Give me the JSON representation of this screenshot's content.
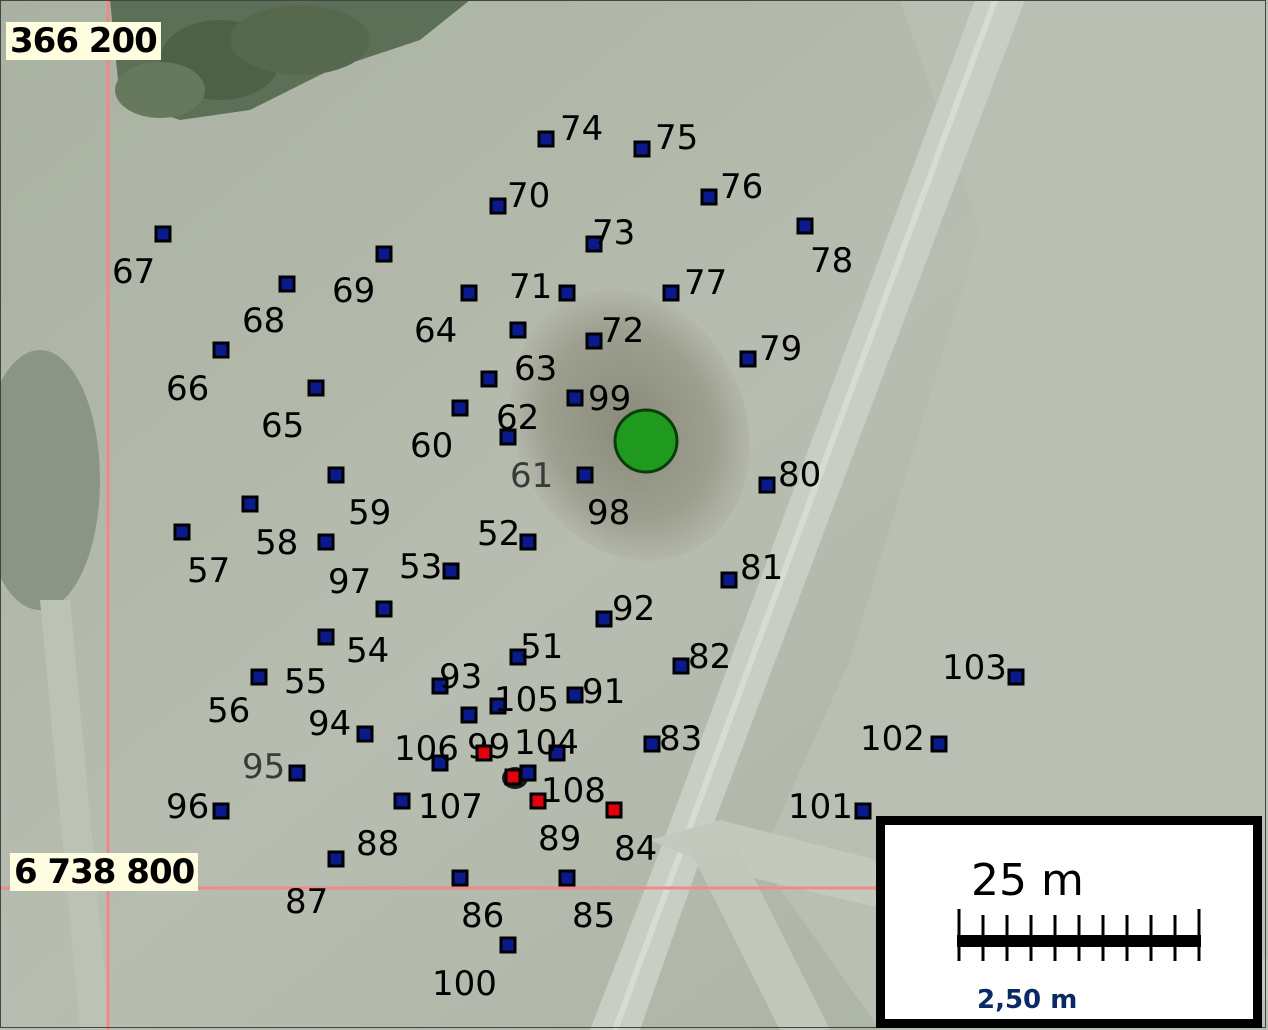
{
  "coordinates": {
    "top_left_label": "366 200",
    "grid_label": "6 738 800"
  },
  "scale": {
    "title": "25 m",
    "subtitle": "2,50 m"
  },
  "colors": {
    "field": "#b3bbac",
    "road": "#c6cbc1",
    "grid_line": "#f08a8a",
    "point_blue": "#0a1a8c",
    "point_red": "#e0000e",
    "center_marker": "#1f9a1f"
  },
  "center_marker": {
    "icon": "green-circle-marker"
  },
  "points": [
    {
      "label": "74",
      "color": "blue"
    },
    {
      "label": "75",
      "color": "blue"
    },
    {
      "label": "70",
      "color": "blue"
    },
    {
      "label": "76",
      "color": "blue"
    },
    {
      "label": "73",
      "color": "blue"
    },
    {
      "label": "78",
      "color": "blue"
    },
    {
      "label": "67",
      "color": "blue"
    },
    {
      "label": "69",
      "color": "blue"
    },
    {
      "label": "71",
      "color": "blue"
    },
    {
      "label": "77",
      "color": "blue"
    },
    {
      "label": "68",
      "color": "blue"
    },
    {
      "label": "64",
      "color": "blue"
    },
    {
      "label": "72",
      "color": "blue"
    },
    {
      "label": "63",
      "color": "blue"
    },
    {
      "label": "79",
      "color": "blue"
    },
    {
      "label": "66",
      "color": "blue"
    },
    {
      "label": "62",
      "color": "blue"
    },
    {
      "label": "99",
      "color": "blue"
    },
    {
      "label": "65",
      "color": "blue"
    },
    {
      "label": "60",
      "color": "blue"
    },
    {
      "label": "61",
      "color": "blue"
    },
    {
      "label": "80",
      "color": "blue"
    },
    {
      "label": "98",
      "color": "blue"
    },
    {
      "label": "59",
      "color": "blue"
    },
    {
      "label": "58",
      "color": "blue"
    },
    {
      "label": "52",
      "color": "blue"
    },
    {
      "label": "57",
      "color": "blue"
    },
    {
      "label": "97",
      "color": "blue"
    },
    {
      "label": "53",
      "color": "blue"
    },
    {
      "label": "81",
      "color": "blue"
    },
    {
      "label": "92",
      "color": "blue"
    },
    {
      "label": "54",
      "color": "blue"
    },
    {
      "label": "51",
      "color": "blue"
    },
    {
      "label": "55",
      "color": "blue"
    },
    {
      "label": "82",
      "color": "blue"
    },
    {
      "label": "103",
      "color": "blue"
    },
    {
      "label": "93",
      "color": "blue"
    },
    {
      "label": "56",
      "color": "blue"
    },
    {
      "label": "91",
      "color": "blue"
    },
    {
      "label": "105",
      "color": "blue"
    },
    {
      "label": "94",
      "color": "blue"
    },
    {
      "label": "102",
      "color": "blue"
    },
    {
      "label": "83",
      "color": "blue"
    },
    {
      "label": "106",
      "color": "blue"
    },
    {
      "label": "99",
      "color": "blue"
    },
    {
      "label": "104",
      "color": "blue"
    },
    {
      "label": "95",
      "color": "blue"
    },
    {
      "label": "108",
      "color": "blue"
    },
    {
      "label": "96",
      "color": "blue"
    },
    {
      "label": "107",
      "color": "blue"
    },
    {
      "label": "101",
      "color": "blue"
    },
    {
      "label": "88",
      "color": "blue"
    },
    {
      "label": "89",
      "color": "red"
    },
    {
      "label": "84",
      "color": "red"
    },
    {
      "label": "87",
      "color": "blue"
    },
    {
      "label": "86",
      "color": "blue"
    },
    {
      "label": "85",
      "color": "blue"
    },
    {
      "label": "100",
      "color": "blue"
    }
  ],
  "red_markers": [
    {
      "icon": "red-square-marker"
    },
    {
      "icon": "red-square-marker"
    }
  ]
}
